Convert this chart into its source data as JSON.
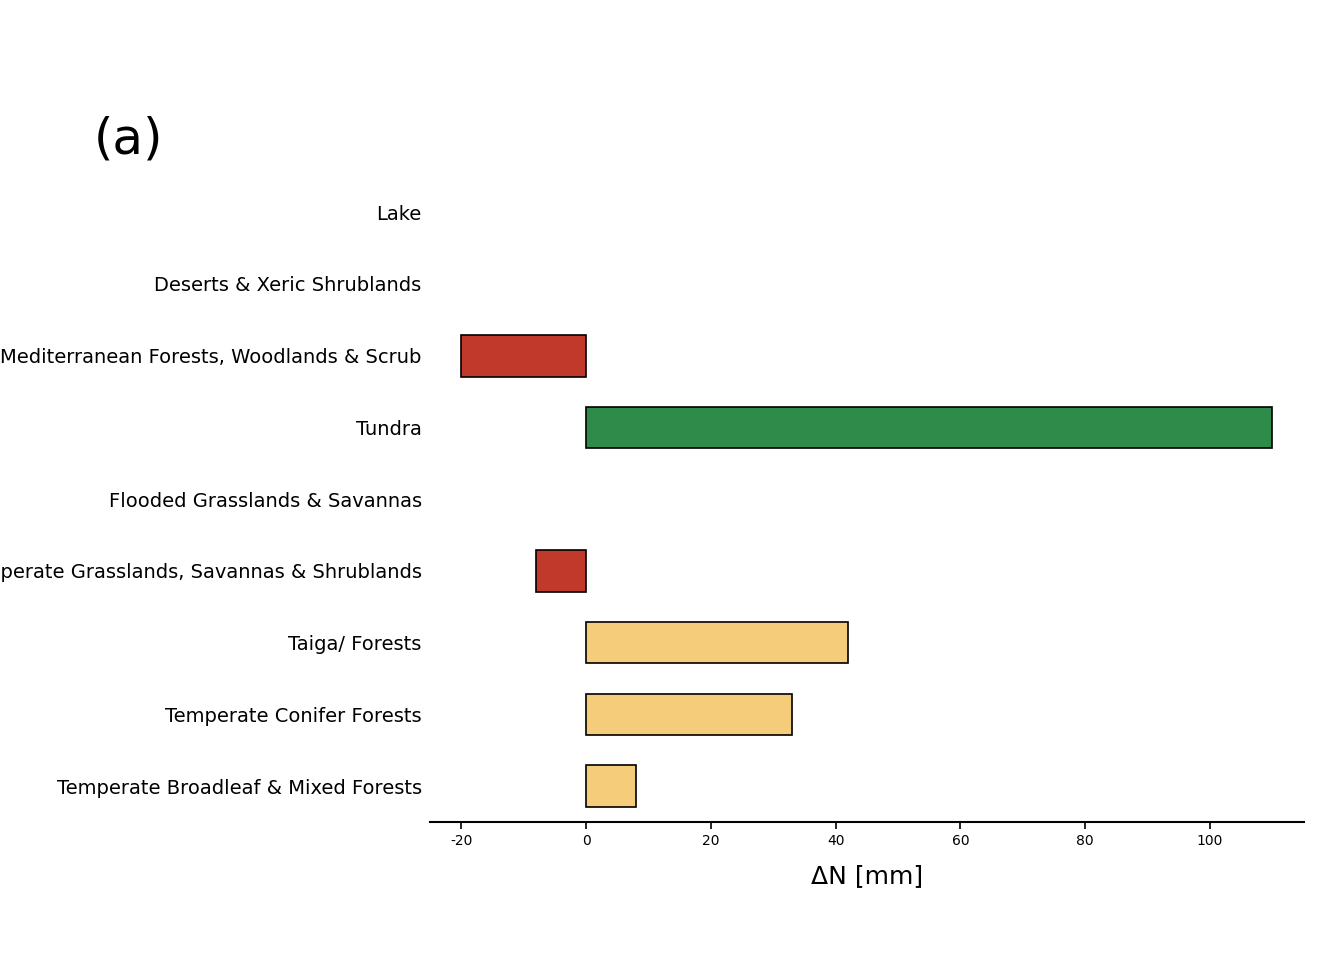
{
  "categories": [
    "Lake",
    "Deserts & Xeric Shrublands",
    "Mediterranean Forests, Woodlands & Scrub",
    "Tundra",
    "Flooded Grasslands & Savannas",
    "Temperate Grasslands, Savannas & Shrublands",
    "Taiga/ Forests",
    "Temperate Conifer Forests",
    "Temperate Broadleaf & Mixed Forests"
  ],
  "values": [
    0,
    0,
    -20,
    110,
    0,
    -8,
    42,
    33,
    8
  ],
  "colors": [
    "#ffffff",
    "#ffffff",
    "#c0392b",
    "#2e8b4a",
    "#ffffff",
    "#c0392b",
    "#f5cc7a",
    "#f5cc7a",
    "#f5cc7a"
  ],
  "edgecolors": [
    "none",
    "none",
    "#000000",
    "#000000",
    "none",
    "#000000",
    "#000000",
    "#000000",
    "#000000"
  ],
  "xlabel": "ΔN [mm]",
  "panel_label": "(a)",
  "xlim": [
    -25,
    115
  ],
  "xticks": [
    -20,
    0,
    20,
    40,
    60,
    80,
    100
  ],
  "bar_height": 0.58,
  "label_fontsize": 14,
  "tick_fontsize": 14,
  "xlabel_fontsize": 18,
  "panel_fontsize": 36,
  "background_color": "#ffffff"
}
